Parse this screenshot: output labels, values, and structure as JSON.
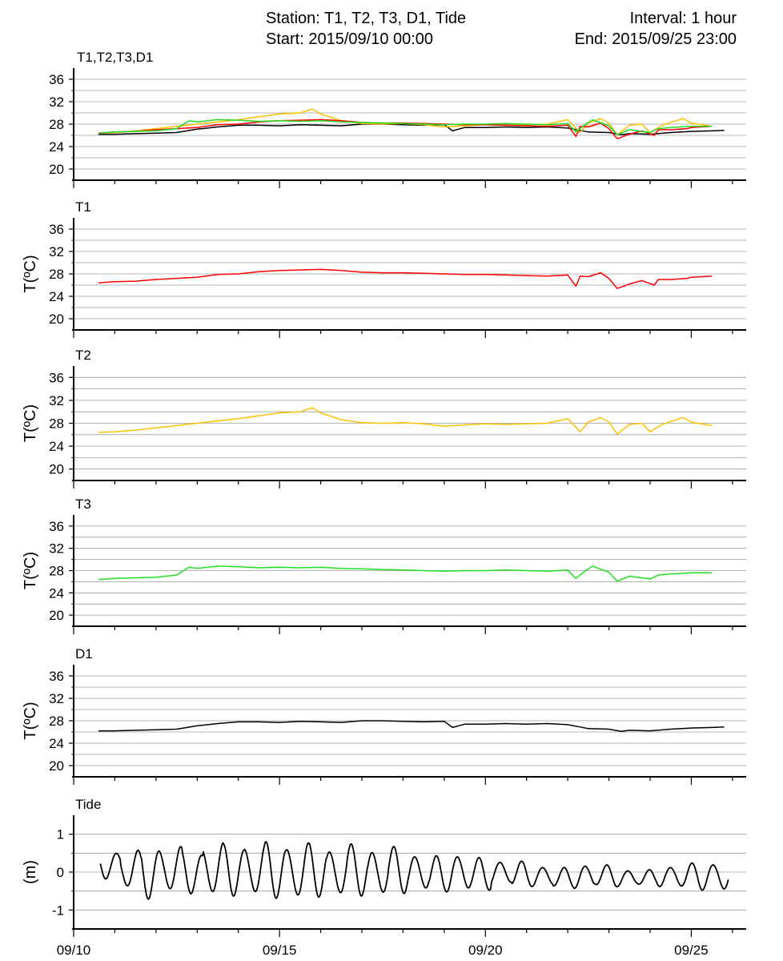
{
  "header": {
    "station": "Station:  T1, T2, T3, D1, Tide",
    "start": "Start: 2015/09/10 00:00",
    "interval": "Interval: 1 hour",
    "end": "End: 2015/09/25 23:00"
  },
  "chart_data": [
    {
      "id": "combined",
      "type": "line",
      "title": "T1,T2,T3,D1",
      "ylabel": "",
      "ylim": [
        18,
        38
      ],
      "yticks": [
        "20",
        "24",
        "28",
        "32",
        "36"
      ],
      "xlim": [
        "2015-09-10 00:00",
        "2015-09-26 08:00"
      ],
      "grid": true,
      "series": [
        {
          "color": "#000000",
          "ref": "D1"
        },
        {
          "color": "#ffc000",
          "ref": "T2"
        },
        {
          "color": "#ff0000",
          "ref": "T1"
        },
        {
          "color": "#22dd22",
          "ref": "T3"
        }
      ]
    },
    {
      "id": "T1",
      "type": "line",
      "title": "T1",
      "ylabel": "T(ºC)",
      "ylim": [
        18,
        38
      ],
      "yticks": [
        "20",
        "24",
        "28",
        "32",
        "36"
      ],
      "grid": true,
      "series": [
        {
          "color": "#ff0000",
          "x": [
            0.6,
            1.0,
            1.5,
            2.0,
            2.5,
            3.0,
            3.5,
            4.0,
            4.5,
            5.0,
            5.5,
            6.0,
            6.5,
            7.0,
            7.5,
            8.0,
            8.5,
            9.0,
            9.5,
            10.0,
            10.5,
            11.0,
            11.5,
            12.0,
            12.2,
            12.3,
            12.5,
            12.8,
            13.0,
            13.2,
            13.5,
            13.8,
            14.1,
            14.2,
            14.5,
            14.9,
            15.0,
            15.5
          ],
          "y": [
            26.4,
            26.6,
            26.7,
            27.0,
            27.2,
            27.4,
            27.9,
            28.0,
            28.4,
            28.6,
            28.7,
            28.8,
            28.6,
            28.3,
            28.2,
            28.2,
            28.1,
            28.0,
            27.9,
            27.9,
            27.8,
            27.7,
            27.6,
            27.8,
            25.8,
            27.6,
            27.5,
            28.2,
            27.2,
            25.4,
            26.2,
            26.8,
            26.0,
            27.0,
            27.0,
            27.2,
            27.4,
            27.6
          ]
        }
      ]
    },
    {
      "id": "T2",
      "type": "line",
      "title": "T2",
      "ylabel": "T(ºC)",
      "ylim": [
        18,
        38
      ],
      "yticks": [
        "20",
        "24",
        "28",
        "32",
        "36"
      ],
      "grid": true,
      "series": [
        {
          "color": "#ffc000",
          "x": [
            0.6,
            1.0,
            1.5,
            2.0,
            2.5,
            3.0,
            3.5,
            4.0,
            4.5,
            5.0,
            5.5,
            5.8,
            6.0,
            6.5,
            7.0,
            7.5,
            8.0,
            8.5,
            9.0,
            9.5,
            10.0,
            10.5,
            11.0,
            11.5,
            12.0,
            12.3,
            12.5,
            12.8,
            13.0,
            13.2,
            13.5,
            13.8,
            14.0,
            14.3,
            14.5,
            14.8,
            15.0,
            15.5
          ],
          "y": [
            26.4,
            26.5,
            26.8,
            27.2,
            27.6,
            28.0,
            28.4,
            28.8,
            29.3,
            29.8,
            30.0,
            30.7,
            29.8,
            28.6,
            28.1,
            28.0,
            28.1,
            27.9,
            27.5,
            27.7,
            27.9,
            27.8,
            27.9,
            28.0,
            28.8,
            26.5,
            28.2,
            29.0,
            28.2,
            26.1,
            27.8,
            28.0,
            26.5,
            27.8,
            28.3,
            29.0,
            28.2,
            27.6
          ]
        }
      ]
    },
    {
      "id": "T3",
      "type": "line",
      "title": "T3",
      "ylabel": "T(ºC)",
      "ylim": [
        18,
        38
      ],
      "yticks": [
        "20",
        "24",
        "28",
        "32",
        "36"
      ],
      "grid": true,
      "series": [
        {
          "color": "#22dd22",
          "x": [
            0.6,
            1.0,
            1.5,
            2.0,
            2.5,
            2.8,
            3.0,
            3.5,
            4.0,
            4.5,
            5.0,
            5.5,
            6.0,
            6.5,
            7.0,
            7.5,
            8.0,
            8.5,
            9.0,
            9.5,
            10.0,
            10.5,
            11.0,
            11.5,
            12.0,
            12.2,
            12.4,
            12.6,
            13.0,
            13.2,
            13.5,
            14.0,
            14.2,
            14.5,
            15.0,
            15.5
          ],
          "y": [
            26.4,
            26.6,
            26.7,
            26.8,
            27.2,
            28.6,
            28.4,
            28.8,
            28.7,
            28.5,
            28.6,
            28.5,
            28.6,
            28.4,
            28.3,
            28.2,
            28.1,
            28.0,
            27.9,
            28.0,
            28.0,
            28.1,
            28.0,
            27.9,
            28.1,
            26.6,
            27.8,
            28.8,
            27.7,
            26.1,
            27.0,
            26.5,
            27.2,
            27.4,
            27.6,
            27.6
          ]
        }
      ]
    },
    {
      "id": "D1",
      "type": "line",
      "title": "D1",
      "ylabel": "T(ºC)",
      "ylim": [
        18,
        38
      ],
      "yticks": [
        "20",
        "24",
        "28",
        "32",
        "36"
      ],
      "grid": true,
      "series": [
        {
          "color": "#000000",
          "x": [
            0.6,
            1.0,
            1.5,
            2.0,
            2.5,
            3.0,
            3.5,
            4.0,
            4.5,
            5.0,
            5.5,
            6.0,
            6.5,
            7.0,
            7.5,
            8.0,
            8.5,
            9.0,
            9.2,
            9.5,
            10.0,
            10.5,
            11.0,
            11.5,
            12.0,
            12.5,
            13.0,
            13.3,
            13.5,
            14.0,
            14.5,
            15.0,
            15.5,
            15.8
          ],
          "y": [
            26.2,
            26.2,
            26.3,
            26.4,
            26.5,
            27.1,
            27.5,
            27.8,
            27.8,
            27.7,
            27.9,
            27.8,
            27.7,
            28.0,
            28.0,
            27.9,
            27.8,
            27.9,
            26.8,
            27.4,
            27.4,
            27.5,
            27.4,
            27.5,
            27.3,
            26.6,
            26.5,
            26.1,
            26.3,
            26.2,
            26.5,
            26.7,
            26.8,
            26.9
          ]
        }
      ]
    },
    {
      "id": "tide",
      "type": "line",
      "title": "Tide",
      "ylabel": "(m)",
      "ylim": [
        -1.5,
        1.5
      ],
      "yticks": [
        "-1",
        "0",
        "1"
      ],
      "grid": true,
      "xticks": [
        "09/10",
        "09/15",
        "09/20",
        "09/25"
      ],
      "series": [
        {
          "color": "#000000",
          "start_day": 0.65,
          "end_day": 15.9,
          "period_hours": 12.42,
          "amplitudes": [
            0.4,
            0.55,
            0.75,
            0.65,
            0.6,
            0.75,
            0.72,
            0.75,
            0.78,
            0.8,
            0.75,
            0.72,
            0.72,
            0.7,
            0.65,
            0.55,
            0.5,
            0.55,
            0.45,
            0.35,
            0.35,
            0.3,
            0.28,
            0.35,
            0.3,
            0.25,
            0.22,
            0.3,
            0.35,
            0.4,
            0.45,
            0.5,
            0.55,
            0.45
          ],
          "offsets": [
            0.2,
            0.05,
            0,
            0.05,
            0,
            0.05,
            0.05,
            0.05,
            0.05,
            0,
            0.05,
            0,
            0.05,
            0,
            0.05,
            0,
            -0.05,
            0,
            -0.05,
            0,
            -0.05,
            -0.1,
            -0.15,
            -0.1,
            -0.1,
            -0.15,
            -0.15,
            -0.1,
            -0.1,
            -0.1,
            -0.1,
            -0.1,
            -0.05,
            -0.1
          ]
        }
      ]
    }
  ]
}
